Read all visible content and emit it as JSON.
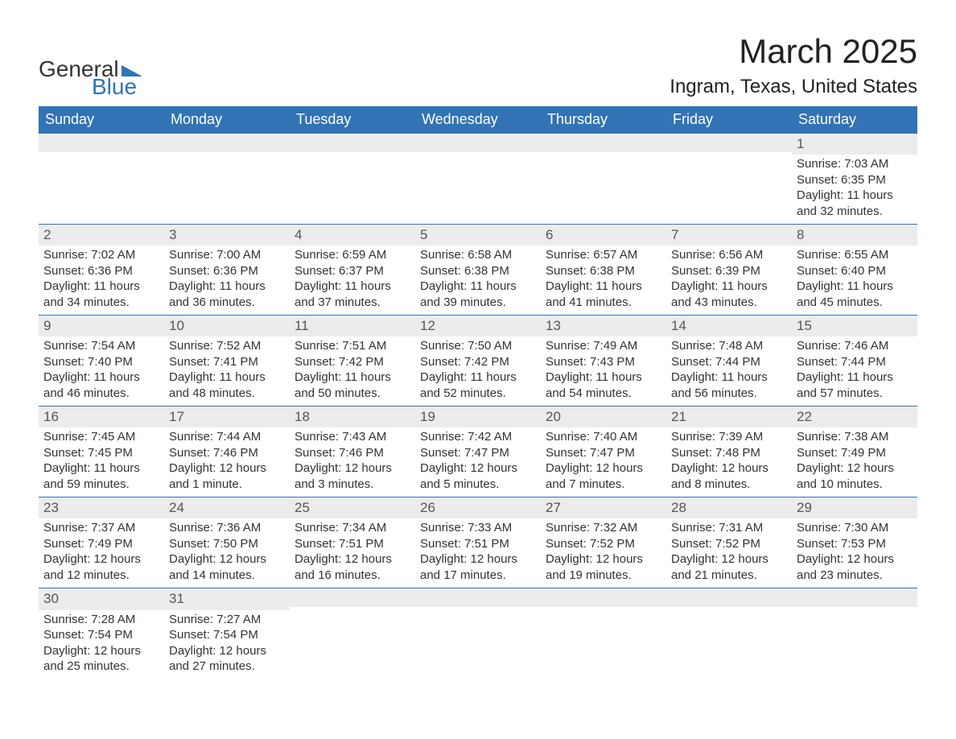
{
  "logo": {
    "word1": "General",
    "word2": "Blue",
    "flag_color": "#3273b5"
  },
  "title": "March 2025",
  "location": "Ingram, Texas, United States",
  "colors": {
    "header_bg": "#3273b5",
    "header_text": "#ffffff",
    "daynum_bg": "#ececec",
    "border": "#3273b5",
    "body_text": "#333333"
  },
  "typography": {
    "title_fontsize": 42,
    "location_fontsize": 24,
    "header_fontsize": 18,
    "daynum_fontsize": 17,
    "body_fontsize": 15
  },
  "weekdays": [
    "Sunday",
    "Monday",
    "Tuesday",
    "Wednesday",
    "Thursday",
    "Friday",
    "Saturday"
  ],
  "weeks": [
    [
      null,
      null,
      null,
      null,
      null,
      null,
      {
        "n": "1",
        "sr": "7:03 AM",
        "ss": "6:35 PM",
        "dl": "11 hours and 32 minutes."
      }
    ],
    [
      {
        "n": "2",
        "sr": "7:02 AM",
        "ss": "6:36 PM",
        "dl": "11 hours and 34 minutes."
      },
      {
        "n": "3",
        "sr": "7:00 AM",
        "ss": "6:36 PM",
        "dl": "11 hours and 36 minutes."
      },
      {
        "n": "4",
        "sr": "6:59 AM",
        "ss": "6:37 PM",
        "dl": "11 hours and 37 minutes."
      },
      {
        "n": "5",
        "sr": "6:58 AM",
        "ss": "6:38 PM",
        "dl": "11 hours and 39 minutes."
      },
      {
        "n": "6",
        "sr": "6:57 AM",
        "ss": "6:38 PM",
        "dl": "11 hours and 41 minutes."
      },
      {
        "n": "7",
        "sr": "6:56 AM",
        "ss": "6:39 PM",
        "dl": "11 hours and 43 minutes."
      },
      {
        "n": "8",
        "sr": "6:55 AM",
        "ss": "6:40 PM",
        "dl": "11 hours and 45 minutes."
      }
    ],
    [
      {
        "n": "9",
        "sr": "7:54 AM",
        "ss": "7:40 PM",
        "dl": "11 hours and 46 minutes."
      },
      {
        "n": "10",
        "sr": "7:52 AM",
        "ss": "7:41 PM",
        "dl": "11 hours and 48 minutes."
      },
      {
        "n": "11",
        "sr": "7:51 AM",
        "ss": "7:42 PM",
        "dl": "11 hours and 50 minutes."
      },
      {
        "n": "12",
        "sr": "7:50 AM",
        "ss": "7:42 PM",
        "dl": "11 hours and 52 minutes."
      },
      {
        "n": "13",
        "sr": "7:49 AM",
        "ss": "7:43 PM",
        "dl": "11 hours and 54 minutes."
      },
      {
        "n": "14",
        "sr": "7:48 AM",
        "ss": "7:44 PM",
        "dl": "11 hours and 56 minutes."
      },
      {
        "n": "15",
        "sr": "7:46 AM",
        "ss": "7:44 PM",
        "dl": "11 hours and 57 minutes."
      }
    ],
    [
      {
        "n": "16",
        "sr": "7:45 AM",
        "ss": "7:45 PM",
        "dl": "11 hours and 59 minutes."
      },
      {
        "n": "17",
        "sr": "7:44 AM",
        "ss": "7:46 PM",
        "dl": "12 hours and 1 minute."
      },
      {
        "n": "18",
        "sr": "7:43 AM",
        "ss": "7:46 PM",
        "dl": "12 hours and 3 minutes."
      },
      {
        "n": "19",
        "sr": "7:42 AM",
        "ss": "7:47 PM",
        "dl": "12 hours and 5 minutes."
      },
      {
        "n": "20",
        "sr": "7:40 AM",
        "ss": "7:47 PM",
        "dl": "12 hours and 7 minutes."
      },
      {
        "n": "21",
        "sr": "7:39 AM",
        "ss": "7:48 PM",
        "dl": "12 hours and 8 minutes."
      },
      {
        "n": "22",
        "sr": "7:38 AM",
        "ss": "7:49 PM",
        "dl": "12 hours and 10 minutes."
      }
    ],
    [
      {
        "n": "23",
        "sr": "7:37 AM",
        "ss": "7:49 PM",
        "dl": "12 hours and 12 minutes."
      },
      {
        "n": "24",
        "sr": "7:36 AM",
        "ss": "7:50 PM",
        "dl": "12 hours and 14 minutes."
      },
      {
        "n": "25",
        "sr": "7:34 AM",
        "ss": "7:51 PM",
        "dl": "12 hours and 16 minutes."
      },
      {
        "n": "26",
        "sr": "7:33 AM",
        "ss": "7:51 PM",
        "dl": "12 hours and 17 minutes."
      },
      {
        "n": "27",
        "sr": "7:32 AM",
        "ss": "7:52 PM",
        "dl": "12 hours and 19 minutes."
      },
      {
        "n": "28",
        "sr": "7:31 AM",
        "ss": "7:52 PM",
        "dl": "12 hours and 21 minutes."
      },
      {
        "n": "29",
        "sr": "7:30 AM",
        "ss": "7:53 PM",
        "dl": "12 hours and 23 minutes."
      }
    ],
    [
      {
        "n": "30",
        "sr": "7:28 AM",
        "ss": "7:54 PM",
        "dl": "12 hours and 25 minutes."
      },
      {
        "n": "31",
        "sr": "7:27 AM",
        "ss": "7:54 PM",
        "dl": "12 hours and 27 minutes."
      },
      null,
      null,
      null,
      null,
      null
    ]
  ],
  "labels": {
    "sunrise": "Sunrise: ",
    "sunset": "Sunset: ",
    "daylight": "Daylight: "
  }
}
